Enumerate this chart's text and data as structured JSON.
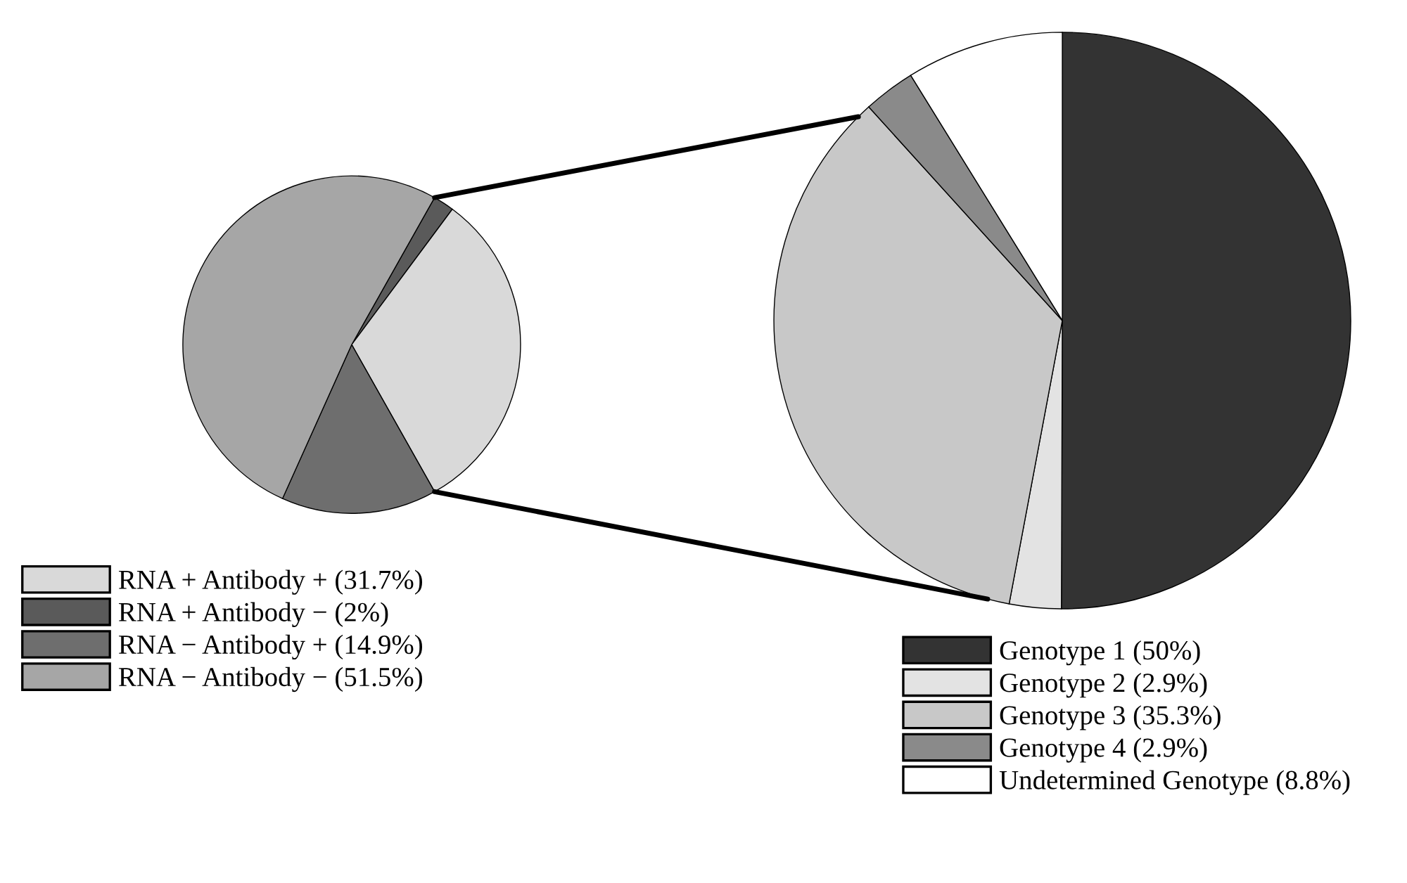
{
  "chart_data": [
    {
      "type": "pie",
      "categories": [
        "RNA + Antibody + (31.7%)",
        "RNA + Antibody − (2%)",
        "RNA − Antibody + (14.9%)",
        "RNA − Antibody − (51.5%)"
      ],
      "values": [
        31.7,
        2,
        14.9,
        51.5
      ],
      "colors": [
        "#d9d9d9",
        "#5a5a5a",
        "#6e6e6e",
        "#a6a6a6"
      ],
      "legend": "bottom left"
    },
    {
      "type": "pie",
      "categories": [
        "Genotype 1 (50%)",
        "Genotype 2 (2.9%)",
        "Genotype 3 (35.3%)",
        "Genotype 4 (2.9%)",
        "Undetermined Genotype (8.8%)"
      ],
      "values": [
        50,
        2.9,
        35.3,
        2.9,
        8.8
      ],
      "colors": [
        "#333333",
        "#e3e3e3",
        "#c8c8c8",
        "#8a8a8a",
        "#ffffff"
      ],
      "legend": "bottom"
    }
  ]
}
